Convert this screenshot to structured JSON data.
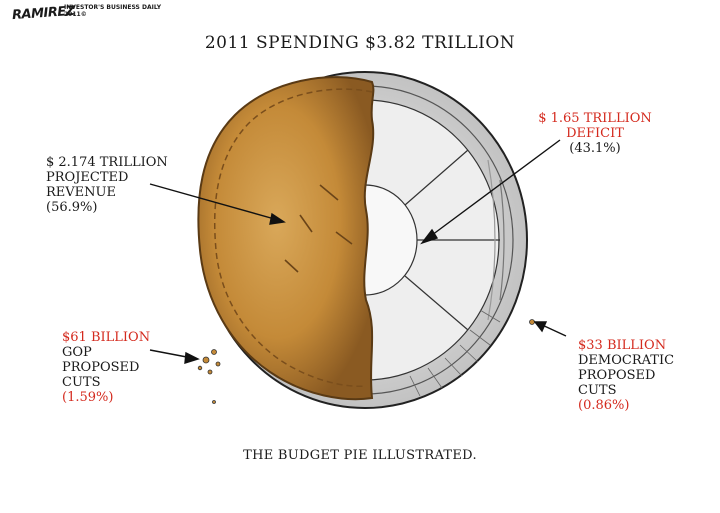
{
  "cartoon": {
    "signature": "RAMIREZ",
    "credit_line1": "INVESTOR'S BUSINESS DAILY",
    "credit_line2": "2011©",
    "title": "2011 SPENDING   $3.82 TRILLION",
    "caption": "THE BUDGET PIE ILLUSTRATED.",
    "colors": {
      "red_text": "#d42a1e",
      "crust": "#c9923f",
      "crust_dark": "#8a5a22",
      "tin": "#e6e6e6"
    }
  },
  "labels": {
    "revenue": {
      "amount": "$ 2.174 TRILLION",
      "line2": "PROJECTED",
      "line3": "REVENUE",
      "percent": "(56.9%)"
    },
    "deficit": {
      "amount": "$ 1.65 TRILLION",
      "line2": "DEFICIT",
      "percent": "(43.1%)"
    },
    "gop": {
      "amount": "$61 BILLION",
      "line2": "GOP",
      "line3": "PROPOSED",
      "line4": "CUTS",
      "percent": "(1.59%)"
    },
    "dem": {
      "amount": "$33 BILLION",
      "line2": "DEMOCRATIC",
      "line3": "PROPOSED",
      "line4": "CUTS",
      "percent": "(0.86%)"
    }
  }
}
